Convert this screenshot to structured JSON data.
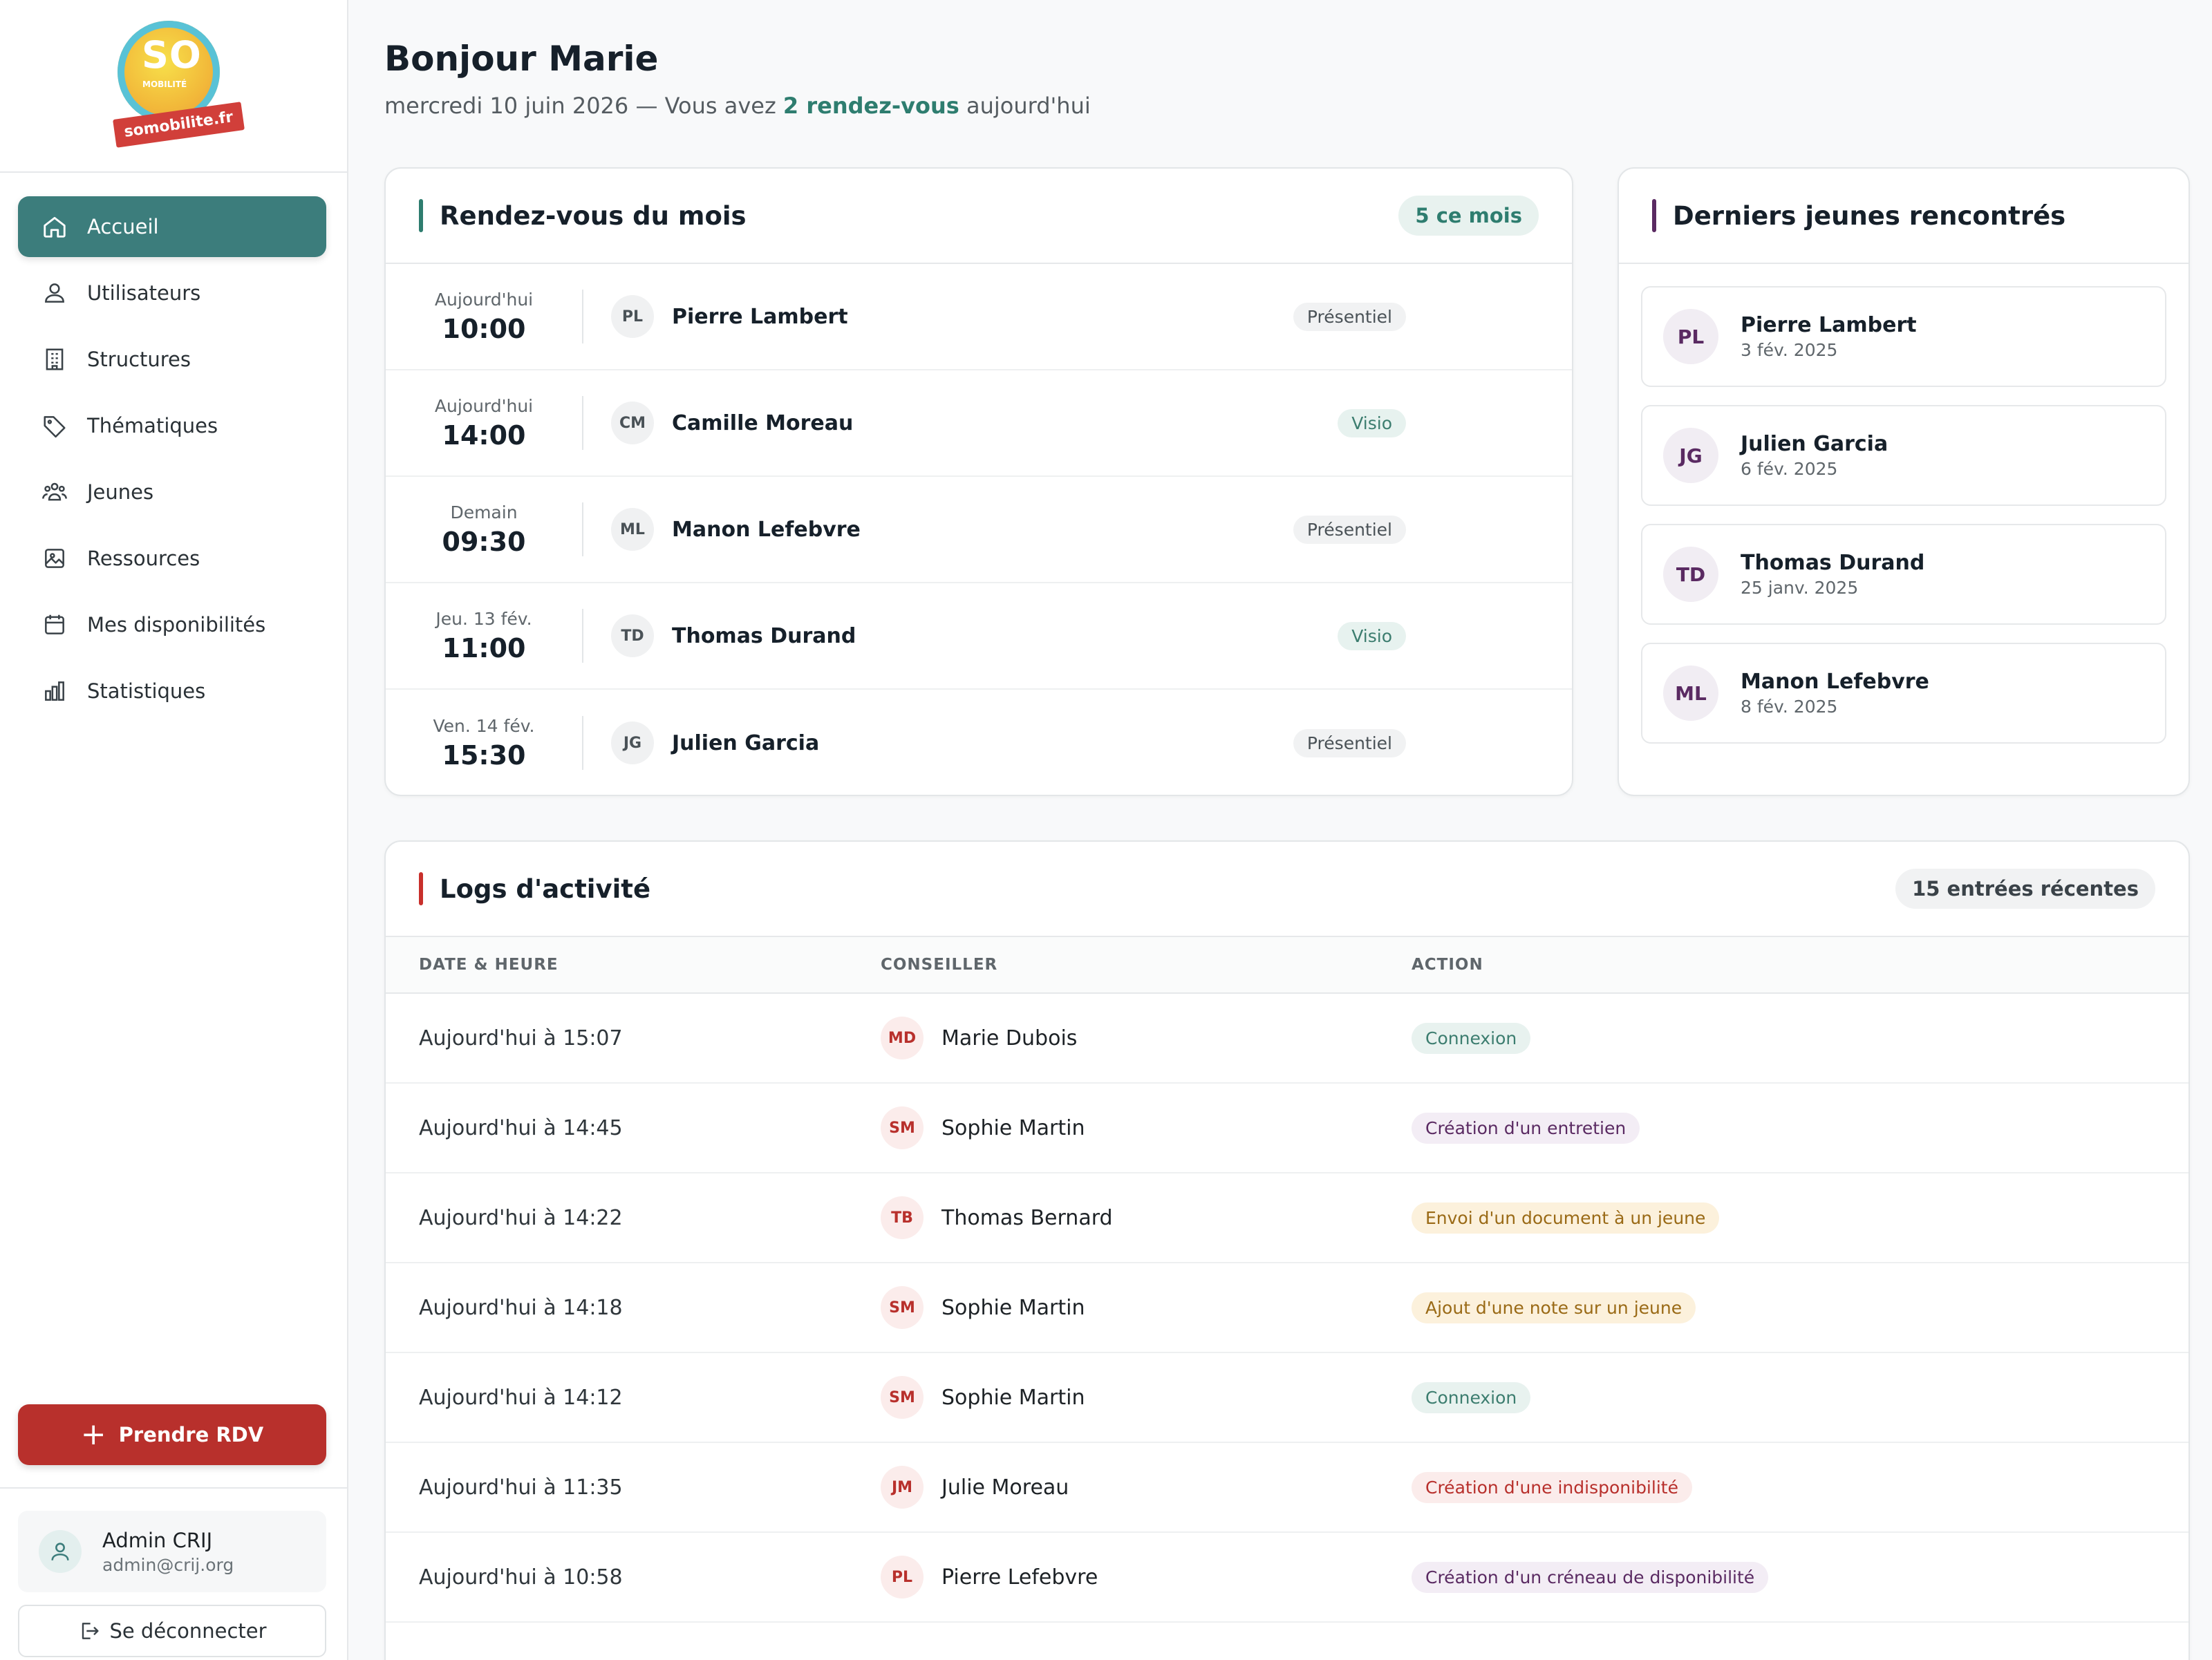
{
  "brand": {
    "logo_text": "SO",
    "logo_sub": "MOBILITÉ",
    "logo_tag": "somobilite.fr"
  },
  "nav": [
    {
      "label": "Accueil",
      "icon": "home-icon",
      "active": true
    },
    {
      "label": "Utilisateurs",
      "icon": "users-icon"
    },
    {
      "label": "Structures",
      "icon": "building-icon"
    },
    {
      "label": "Thématiques",
      "icon": "tag-icon"
    },
    {
      "label": "Jeunes",
      "icon": "group-icon"
    },
    {
      "label": "Ressources",
      "icon": "image-icon"
    },
    {
      "label": "Mes disponibilités",
      "icon": "calendar-icon"
    },
    {
      "label": "Statistiques",
      "icon": "bar-chart-icon"
    }
  ],
  "cta": {
    "label": "Prendre RDV"
  },
  "user": {
    "name": "Admin CRIJ",
    "email": "admin@crij.org",
    "logout_label": "Se déconnecter"
  },
  "header": {
    "greeting": "Bonjour Marie",
    "date": "mercredi 10 juin 2026 — Vous avez ",
    "highlight": "2 rendez-vous",
    "suffix": " aujourd'hui"
  },
  "rdv_card": {
    "title": "Rendez-vous du mois",
    "badge": "5 ce mois",
    "items": [
      {
        "day": "Aujourd'hui",
        "time": "10:00",
        "initials": "PL",
        "name": "Pierre Lambert",
        "mode": "Présentiel"
      },
      {
        "day": "Aujourd'hui",
        "time": "14:00",
        "initials": "CM",
        "name": "Camille Moreau",
        "mode": "Visio"
      },
      {
        "day": "Demain",
        "time": "09:30",
        "initials": "ML",
        "name": "Manon Lefebvre",
        "mode": "Présentiel"
      },
      {
        "day": "Jeu. 13 fév.",
        "time": "11:00",
        "initials": "TD",
        "name": "Thomas Durand",
        "mode": "Visio"
      },
      {
        "day": "Ven. 14 fév.",
        "time": "15:30",
        "initials": "JG",
        "name": "Julien Garcia",
        "mode": "Présentiel"
      }
    ]
  },
  "jeunes_card": {
    "title": "Derniers jeunes rencontrés",
    "items": [
      {
        "initials": "PL",
        "name": "Pierre Lambert",
        "date": "3 fév. 2025"
      },
      {
        "initials": "JG",
        "name": "Julien Garcia",
        "date": "6 fév. 2025"
      },
      {
        "initials": "TD",
        "name": "Thomas Durand",
        "date": "25 janv. 2025"
      },
      {
        "initials": "ML",
        "name": "Manon Lefebvre",
        "date": "8 fév. 2025"
      }
    ]
  },
  "logs_card": {
    "title": "Logs d'activité",
    "badge": "15 entrées récentes",
    "columns": [
      "DATE & HEURE",
      "CONSEILLER",
      "ACTION"
    ],
    "rows": [
      {
        "date": "Aujourd'hui à 15:07",
        "initials": "MD",
        "name": "Marie Dubois",
        "action": "Connexion",
        "tone": "green"
      },
      {
        "date": "Aujourd'hui à 14:45",
        "initials": "SM",
        "name": "Sophie Martin",
        "action": "Création d'un entretien",
        "tone": "purple"
      },
      {
        "date": "Aujourd'hui à 14:22",
        "initials": "TB",
        "name": "Thomas Bernard",
        "action": "Envoi d'un document à un jeune",
        "tone": "yellow"
      },
      {
        "date": "Aujourd'hui à 14:18",
        "initials": "SM",
        "name": "Sophie Martin",
        "action": "Ajout d'une note sur un jeune",
        "tone": "yellow"
      },
      {
        "date": "Aujourd'hui à 14:12",
        "initials": "SM",
        "name": "Sophie Martin",
        "action": "Connexion",
        "tone": "green"
      },
      {
        "date": "Aujourd'hui à 11:35",
        "initials": "JM",
        "name": "Julie Moreau",
        "action": "Création d'une indisponibilité",
        "tone": "red"
      },
      {
        "date": "Aujourd'hui à 10:58",
        "initials": "PL",
        "name": "Pierre Lefebvre",
        "action": "Création d'un créneau de disponibilité",
        "tone": "purple"
      }
    ]
  },
  "colors": {
    "primary": "#3c7d7c",
    "cta": "#b8302c",
    "accent_rdv": "#2e7d6f",
    "accent_jeunes": "#5a2a62",
    "accent_logs": "#c8302c"
  }
}
